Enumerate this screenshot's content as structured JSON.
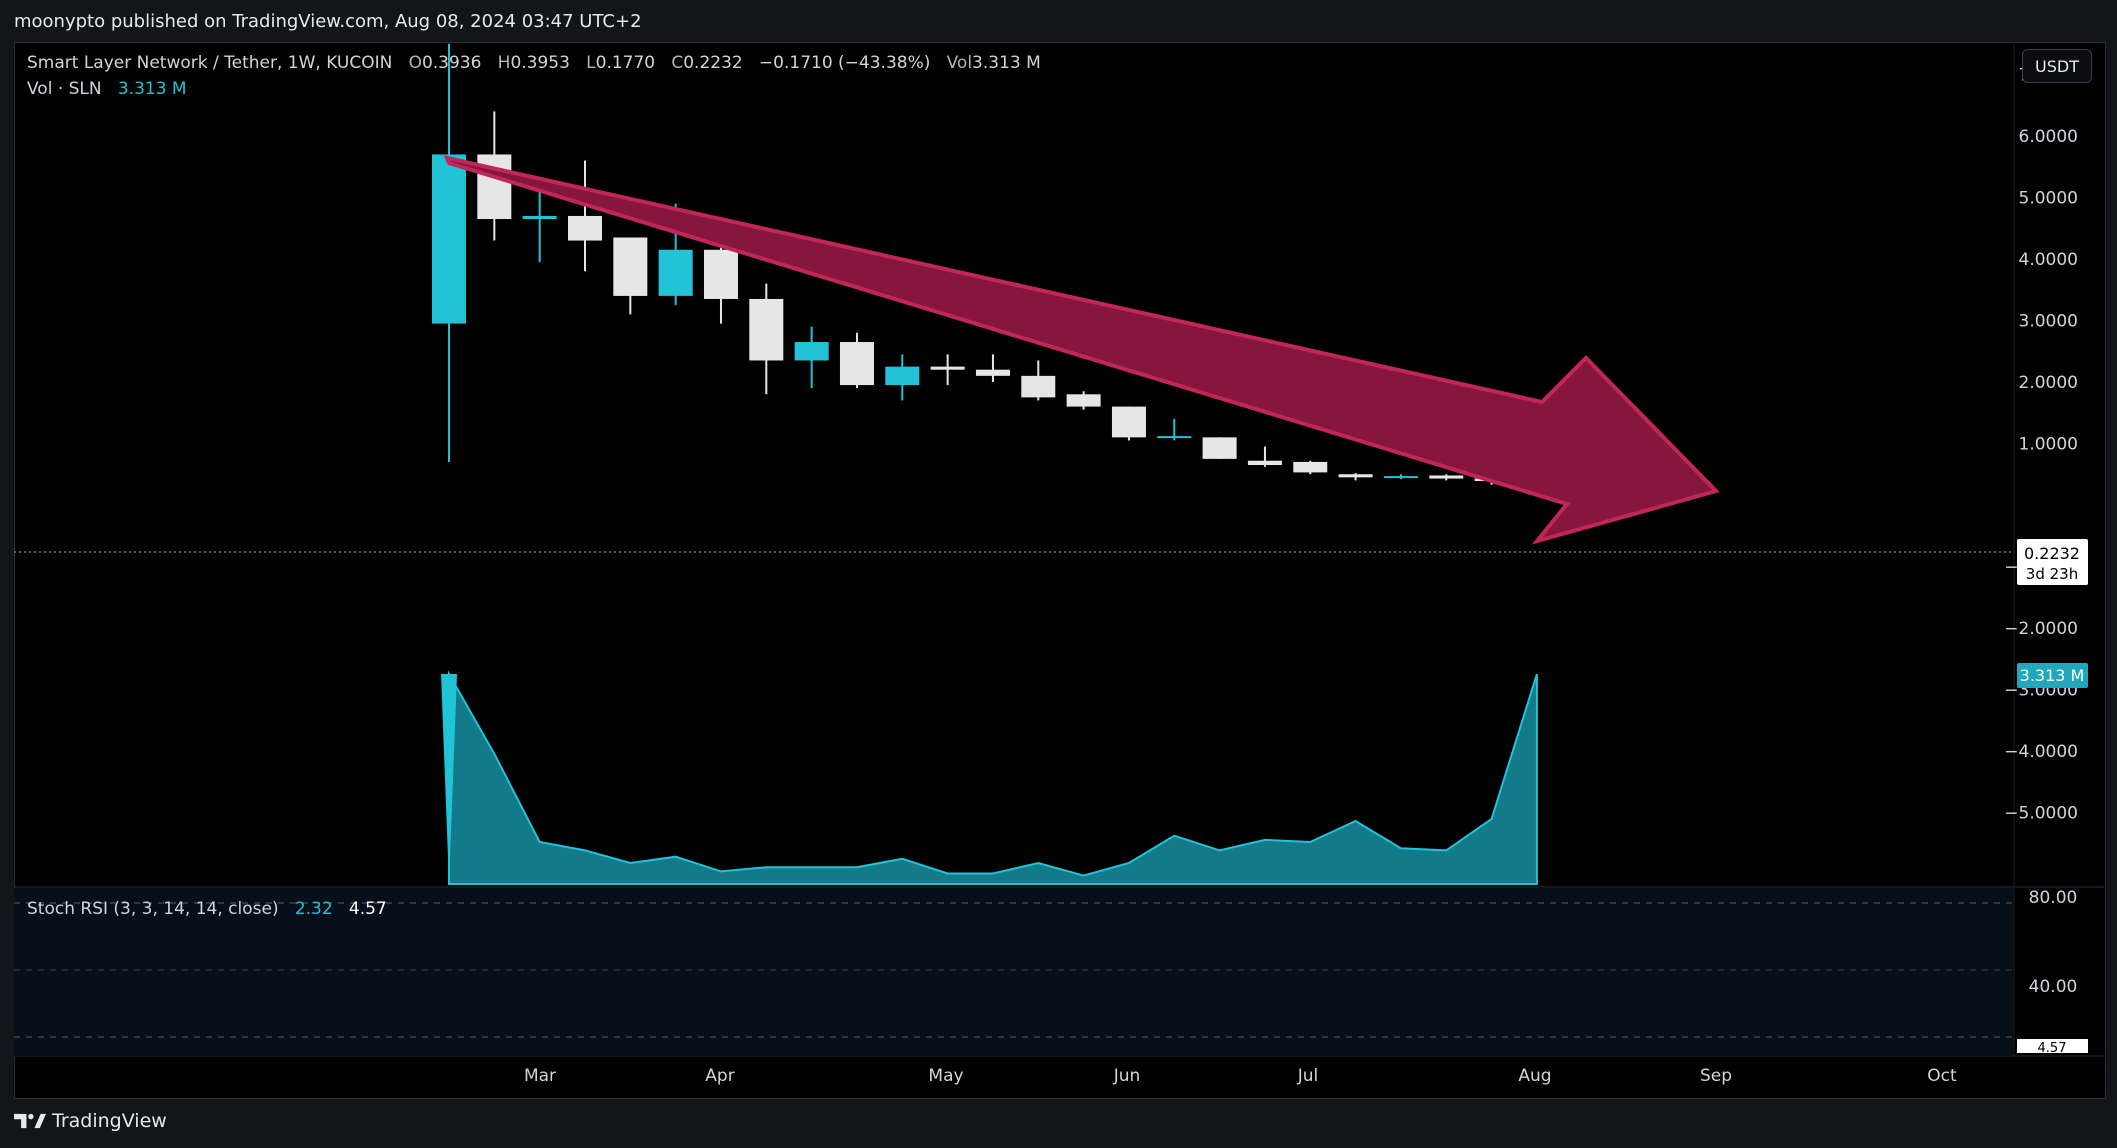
{
  "header": {
    "published_by": "moonypto published on TradingView.com, Aug 08, 2024 03:47 UTC+2"
  },
  "symbol": {
    "name": "Smart Layer Network / Tether, 1W, KUCOIN",
    "open_label": "O",
    "open": "0.3936",
    "high_label": "H",
    "high": "0.3953",
    "low_label": "L",
    "low": "0.1770",
    "close_label": "C",
    "close": "0.2232",
    "change": "−0.1710 (−43.38%)",
    "vol_label": "Vol",
    "vol": "3.313 M"
  },
  "volume_legend": {
    "label": "Vol · SLN",
    "value": "3.313 M"
  },
  "currency_button": "USDT",
  "price_axis": {
    "ticks": [
      "7.0000",
      "6.0000",
      "5.0000",
      "4.0000",
      "3.0000",
      "2.0000",
      "1.0000",
      "−1.0000",
      "−2.0000",
      "−3.0000",
      "−4.0000",
      "−5.0000"
    ],
    "last_price": "0.2232",
    "countdown": "3d 23h",
    "volume_badge": "3.313 M"
  },
  "time_axis": [
    "Mar",
    "Apr",
    "May",
    "Jun",
    "Jul",
    "Aug",
    "Sep",
    "Oct"
  ],
  "stoch_rsi": {
    "label": "Stoch RSI (3, 3, 14, 14, close)",
    "k": "2.32",
    "d": "4.57",
    "ticks": [
      "80.00",
      "40.00"
    ],
    "badge": "4.57"
  },
  "brand": "TradingView",
  "colors": {
    "up": "#22c3d6",
    "down": "#e6e6e6",
    "arrow_fill": "#86163e",
    "arrow_stroke": "#c0265a",
    "volume": "#1aa3b8"
  },
  "chart_data": {
    "type": "candlestick",
    "interval": "1W",
    "candles": [
      {
        "o": 2.95,
        "h": 7.5,
        "l": 0.7,
        "c": 5.7
      },
      {
        "o": 5.7,
        "h": 6.4,
        "l": 4.3,
        "c": 4.65
      },
      {
        "o": 4.65,
        "h": 5.3,
        "l": 3.95,
        "c": 4.7
      },
      {
        "o": 4.7,
        "h": 5.6,
        "l": 3.8,
        "c": 4.3
      },
      {
        "o": 4.35,
        "h": 4.35,
        "l": 3.1,
        "c": 3.4
      },
      {
        "o": 3.4,
        "h": 4.9,
        "l": 3.25,
        "c": 4.15
      },
      {
        "o": 4.15,
        "h": 4.2,
        "l": 2.95,
        "c": 3.35
      },
      {
        "o": 3.35,
        "h": 3.6,
        "l": 1.8,
        "c": 2.35
      },
      {
        "o": 2.35,
        "h": 2.9,
        "l": 1.9,
        "c": 2.65
      },
      {
        "o": 2.65,
        "h": 2.8,
        "l": 1.9,
        "c": 1.95
      },
      {
        "o": 1.95,
        "h": 2.45,
        "l": 1.7,
        "c": 2.25
      },
      {
        "o": 2.25,
        "h": 2.45,
        "l": 1.95,
        "c": 2.2
      },
      {
        "o": 2.2,
        "h": 2.45,
        "l": 2.0,
        "c": 2.1
      },
      {
        "o": 2.1,
        "h": 2.35,
        "l": 1.7,
        "c": 1.75
      },
      {
        "o": 1.8,
        "h": 1.85,
        "l": 1.55,
        "c": 1.6
      },
      {
        "o": 1.6,
        "h": 1.6,
        "l": 1.05,
        "c": 1.1
      },
      {
        "o": 1.1,
        "h": 1.4,
        "l": 1.05,
        "c": 1.12
      },
      {
        "o": 1.1,
        "h": 1.1,
        "l": 0.75,
        "c": 0.75
      },
      {
        "o": 0.72,
        "h": 0.95,
        "l": 0.62,
        "c": 0.65
      },
      {
        "o": 0.7,
        "h": 0.72,
        "l": 0.5,
        "c": 0.53
      },
      {
        "o": 0.5,
        "h": 0.52,
        "l": 0.4,
        "c": 0.45
      },
      {
        "o": 0.45,
        "h": 0.5,
        "l": 0.42,
        "c": 0.47
      },
      {
        "o": 0.48,
        "h": 0.5,
        "l": 0.4,
        "c": 0.43
      },
      {
        "o": 0.43,
        "h": 0.48,
        "l": 0.33,
        "c": 0.39
      },
      {
        "o": 0.3936,
        "h": 0.3953,
        "l": 0.177,
        "c": 0.2232
      }
    ],
    "volume_relative": [
      1.0,
      0.62,
      0.2,
      0.16,
      0.1,
      0.13,
      0.06,
      0.08,
      0.08,
      0.08,
      0.12,
      0.05,
      0.05,
      0.1,
      0.04,
      0.1,
      0.23,
      0.16,
      0.21,
      0.2,
      0.3,
      0.17,
      0.16,
      0.31,
      1.0
    ],
    "price_range": [
      -5.0,
      7.0
    ],
    "stoch_rsi_range": [
      0,
      100
    ]
  }
}
